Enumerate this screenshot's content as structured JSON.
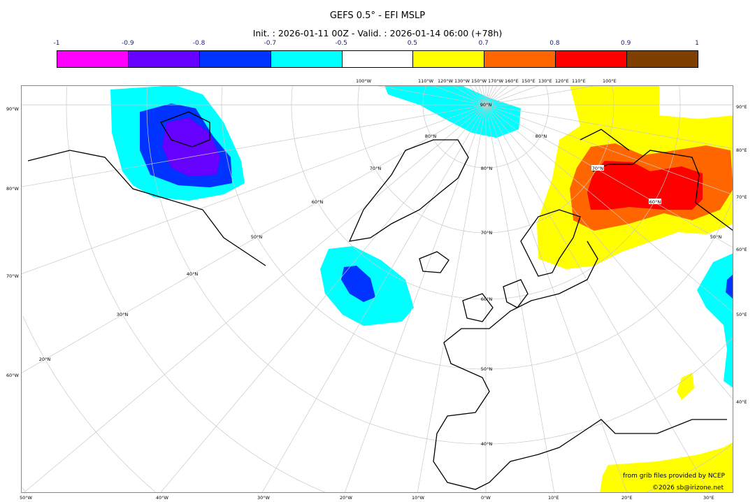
{
  "title": "GEFS 0.5° - EFI MSLP",
  "subtitle": "Init. : 2026-01-11 00Z - Valid. : 2026-01-14 06:00 (+78h)",
  "colorbar": {
    "ticks": [
      "-1",
      "-0.9",
      "-0.8",
      "-0.7",
      "-0.5",
      "0.5",
      "0.7",
      "0.8",
      "0.9",
      "1"
    ],
    "colors": [
      "#ff00ff",
      "#6600ff",
      "#0033ff",
      "#00ffff",
      "#ffffff",
      "#ffff00",
      "#ff6600",
      "#ff0000",
      "#7f3f00"
    ]
  },
  "map": {
    "left_labels": [
      "90°W",
      "80°W",
      "70°W",
      "60°W"
    ],
    "right_labels": [
      "90°E",
      "80°E",
      "70°E",
      "60°E",
      "50°E",
      "40°E"
    ],
    "bottom_labels": [
      "50°W",
      "40°W",
      "30°W",
      "20°W",
      "10°W",
      "0°W",
      "10°E",
      "20°E",
      "30°E"
    ],
    "top_labels": [
      "100°W",
      "110°W",
      "120°W",
      "130°W",
      "150°W",
      "170°W",
      "160°E",
      "150°E",
      "130°E",
      "120°E",
      "110°E",
      "100°E"
    ],
    "lat_labels": [
      "20°N",
      "30°N",
      "40°N",
      "50°N",
      "60°N",
      "70°N",
      "80°N",
      "90°N",
      "80°N",
      "70°N",
      "60°N",
      "50°N",
      "40°N",
      "80°N",
      "70°N",
      "60°N",
      "50°N"
    ]
  },
  "credits": {
    "source": "from grib files provided by NCEP",
    "copyright": "©2026 sb@irizone.net"
  }
}
